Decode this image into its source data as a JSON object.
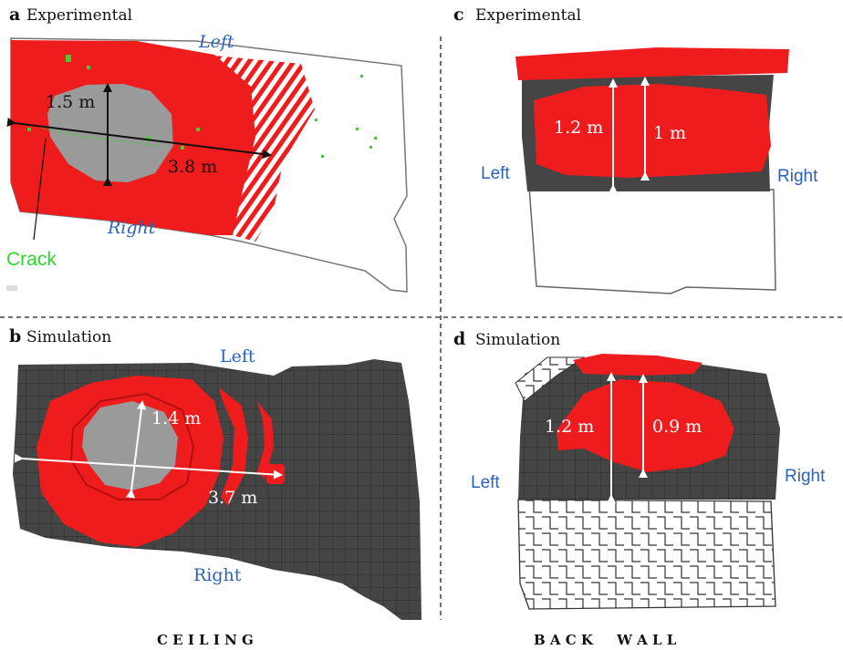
{
  "panels": {
    "a": {
      "letter": "a",
      "title": "Experimental",
      "left": "Left",
      "right": "Right",
      "vertical": "1.5 m",
      "horizontal": "3.8 m",
      "crack": "Crack"
    },
    "b": {
      "letter": "b",
      "title": "Simulation",
      "left": "Left",
      "right": "Right",
      "vertical": "1.4 m",
      "horizontal": "3.7 m"
    },
    "c": {
      "letter": "c",
      "title": "Experimental",
      "left": "Left",
      "right": "Right",
      "outer": "1.2 m",
      "inner": "1 m"
    },
    "d": {
      "letter": "d",
      "title": "Simulation",
      "left": "Left",
      "right": "Right",
      "outer": "1.2 m",
      "inner": "0.9 m"
    }
  },
  "captions": {
    "ceiling": "C E I L I N G",
    "back_wall": "B A C K     W A L L"
  },
  "colors": {
    "damage": "#ee1c1c",
    "spall_core": "#9a9a9a",
    "concrete": "#454545",
    "crack": "#44cc33",
    "label_blue": "#2a63b8"
  }
}
